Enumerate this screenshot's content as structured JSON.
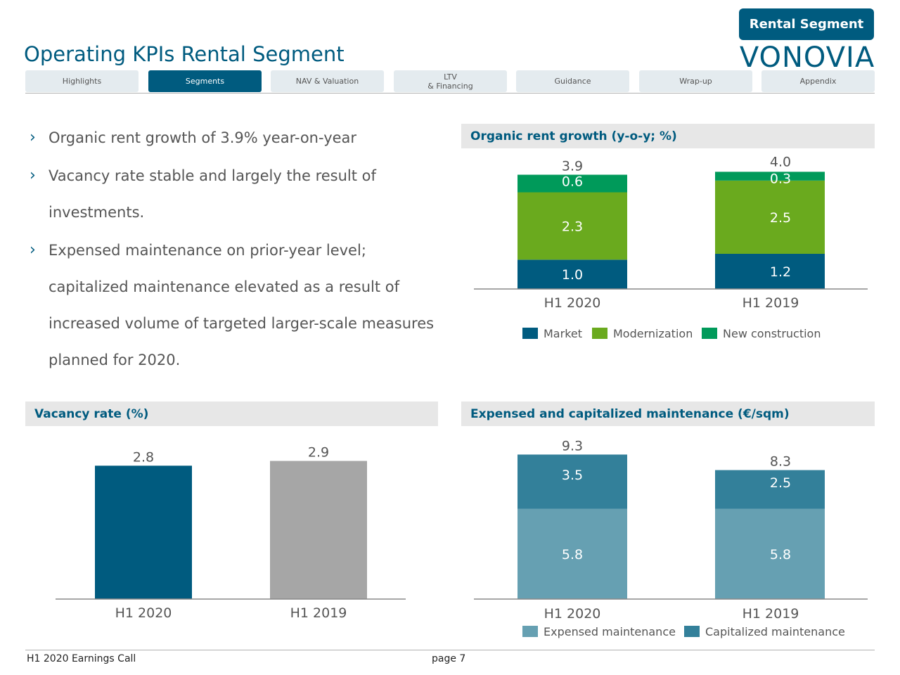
{
  "header": {
    "badge": "Rental Segment",
    "title": "Operating KPIs Rental Segment",
    "logo_text": "VONOVIA"
  },
  "nav": {
    "tabs": [
      {
        "label": "Highlights",
        "label2": "",
        "active": false
      },
      {
        "label": "Segments",
        "label2": "",
        "active": true
      },
      {
        "label": "NAV & Valuation",
        "label2": "",
        "active": false
      },
      {
        "label": "LTV",
        "label2": "& Financing",
        "active": false
      },
      {
        "label": "Guidance",
        "label2": "",
        "active": false
      },
      {
        "label": "Wrap-up",
        "label2": "",
        "active": false
      },
      {
        "label": "Appendix",
        "label2": "",
        "active": false
      }
    ]
  },
  "bullets": [
    "Organic rent growth of 3.9% year-on-year",
    "Vacancy rate stable and largely the result of investments.",
    "Expensed maintenance on prior-year level; capitalized maintenance elevated as a result of increased volume of targeted larger-scale measures planned for 2020."
  ],
  "colors": {
    "market": "#005b7f",
    "modernization": "#6aaa1e",
    "new_construction": "#009a5a",
    "vacancy_2020": "#005b7f",
    "vacancy_2019": "#a6a6a6",
    "expensed": "#66a0b2",
    "capitalized": "#33809a"
  },
  "chart_data": [
    {
      "id": "rent",
      "type": "bar",
      "stacked": true,
      "title": "Organic rent growth (y-o-y; %)",
      "categories": [
        "H1 2020",
        "H1 2019"
      ],
      "series": [
        {
          "name": "Market",
          "values": [
            1.0,
            1.2
          ]
        },
        {
          "name": "Modernization",
          "values": [
            2.3,
            2.5
          ]
        },
        {
          "name": "New construction",
          "values": [
            0.6,
            0.3
          ]
        }
      ],
      "totals": [
        3.9,
        4.0
      ],
      "ylim": [
        0,
        4.2
      ],
      "legend": "bottom"
    },
    {
      "id": "vacancy",
      "type": "bar",
      "title": "Vacancy rate (%)",
      "categories": [
        "H1 2020",
        "H1 2019"
      ],
      "values": [
        2.8,
        2.9
      ],
      "ylim": [
        0,
        3.1
      ]
    },
    {
      "id": "maint",
      "type": "bar",
      "stacked": true,
      "title": "Expensed and capitalized maintenance (€/sqm)",
      "categories": [
        "H1 2020",
        "H1 2019"
      ],
      "series": [
        {
          "name": "Expensed maintenance",
          "values": [
            5.8,
            5.8
          ]
        },
        {
          "name": "Capitalized maintenance",
          "values": [
            3.5,
            2.5
          ]
        }
      ],
      "totals": [
        9.3,
        8.3
      ],
      "ylim": [
        0,
        10.0
      ],
      "legend": "bottom"
    }
  ],
  "footer": {
    "event": "H1 2020 Earnings Call",
    "page": "page 7"
  }
}
